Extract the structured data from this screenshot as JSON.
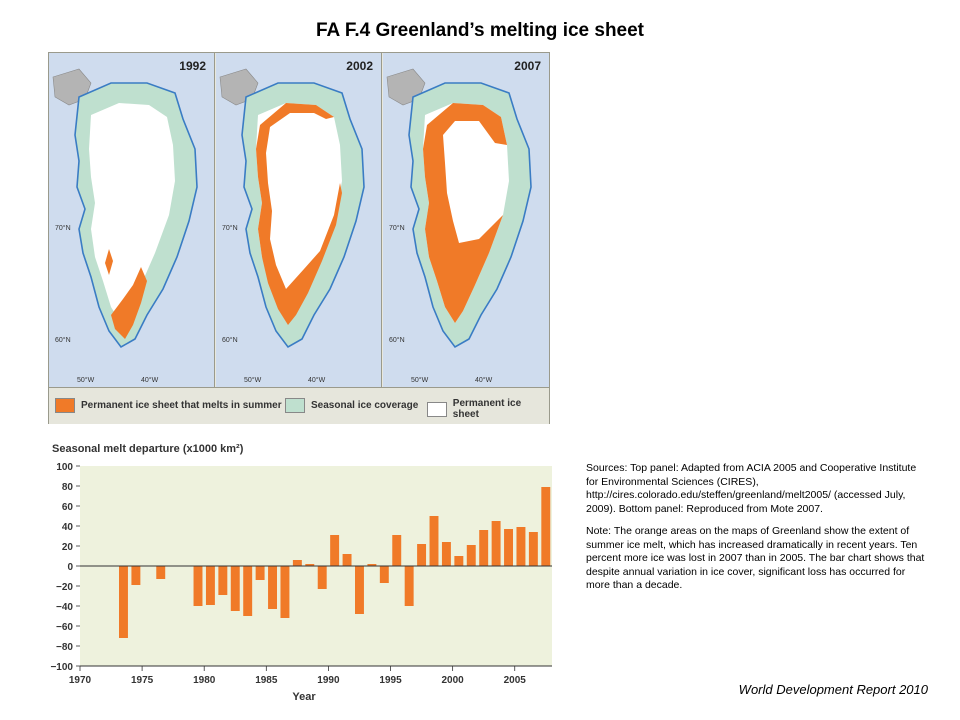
{
  "title": "FA F.4 Greenland’s melting ice sheet",
  "maps": {
    "panels": [
      {
        "year": "1992"
      },
      {
        "year": "2002"
      },
      {
        "year": "2007"
      }
    ],
    "lat_labels": [
      "70°N",
      "60°N"
    ],
    "lon_labels": [
      "50°W",
      "40°W"
    ],
    "legend": [
      {
        "label": "Permanent ice sheet that melts in summer",
        "color": "#f07a28"
      },
      {
        "label": "Seasonal ice coverage",
        "color": "#bfe0cf"
      },
      {
        "label": "Permanent ice sheet",
        "color": "#ffffff"
      }
    ]
  },
  "colors": {
    "melt": "#f07a28",
    "seasonal": "#bfe0cf",
    "ocean": "#cfdcee",
    "coast": "#3a7cc4",
    "land": "#b4b4b4",
    "chart_bg": "#eef2dd"
  },
  "sources": "Sources: Top panel: Adapted from ACIA 2005 and Cooperative Institute for Environmental Sciences (CIRES), http://cires.colorado.edu/steffen/greenland/melt2005/ (accessed July, 2009). Bottom panel: Reproduced from Mote 2007.",
  "note": "Note: The orange areas on the maps of Greenland show the extent of summer ice melt, which has increased dramatically in recent years. Ten percent more ice was lost in 2007 than in 2005. The bar chart shows that despite annual variation in ice cover, significant loss has occurred for more than a decade.",
  "credit": "World Development Report 2010",
  "chart_data": {
    "type": "bar",
    "title": "Seasonal melt departure (x1000 km²)",
    "xlabel": "Year",
    "ylabel": "",
    "xlim": [
      1970,
      2008
    ],
    "ylim": [
      -100,
      100
    ],
    "x_ticks": [
      1970,
      1975,
      1980,
      1985,
      1990,
      1995,
      2000,
      2005
    ],
    "y_ticks": [
      100,
      80,
      60,
      40,
      20,
      0,
      -20,
      -40,
      -60,
      -80,
      -100
    ],
    "y_tick_labels": [
      "100",
      "80",
      "60",
      "40",
      "20",
      "0",
      "−20",
      "−40",
      "−60",
      "−80",
      "−100"
    ],
    "color": "#f07a28",
    "x": [
      1973,
      1974,
      1976,
      1979,
      1980,
      1981,
      1982,
      1983,
      1984,
      1985,
      1986,
      1987,
      1988,
      1989,
      1990,
      1991,
      1992,
      1993,
      1994,
      1995,
      1996,
      1997,
      1998,
      1999,
      2000,
      2001,
      2002,
      2003,
      2004,
      2005,
      2006,
      2007
    ],
    "values": [
      -72,
      -19,
      -13,
      -40,
      -39,
      -29,
      -45,
      -50,
      -14,
      -43,
      -52,
      6,
      2,
      -23,
      31,
      12,
      -48,
      2,
      -17,
      31,
      -40,
      22,
      50,
      24,
      10,
      21,
      36,
      45,
      37,
      39,
      34,
      79
    ]
  }
}
